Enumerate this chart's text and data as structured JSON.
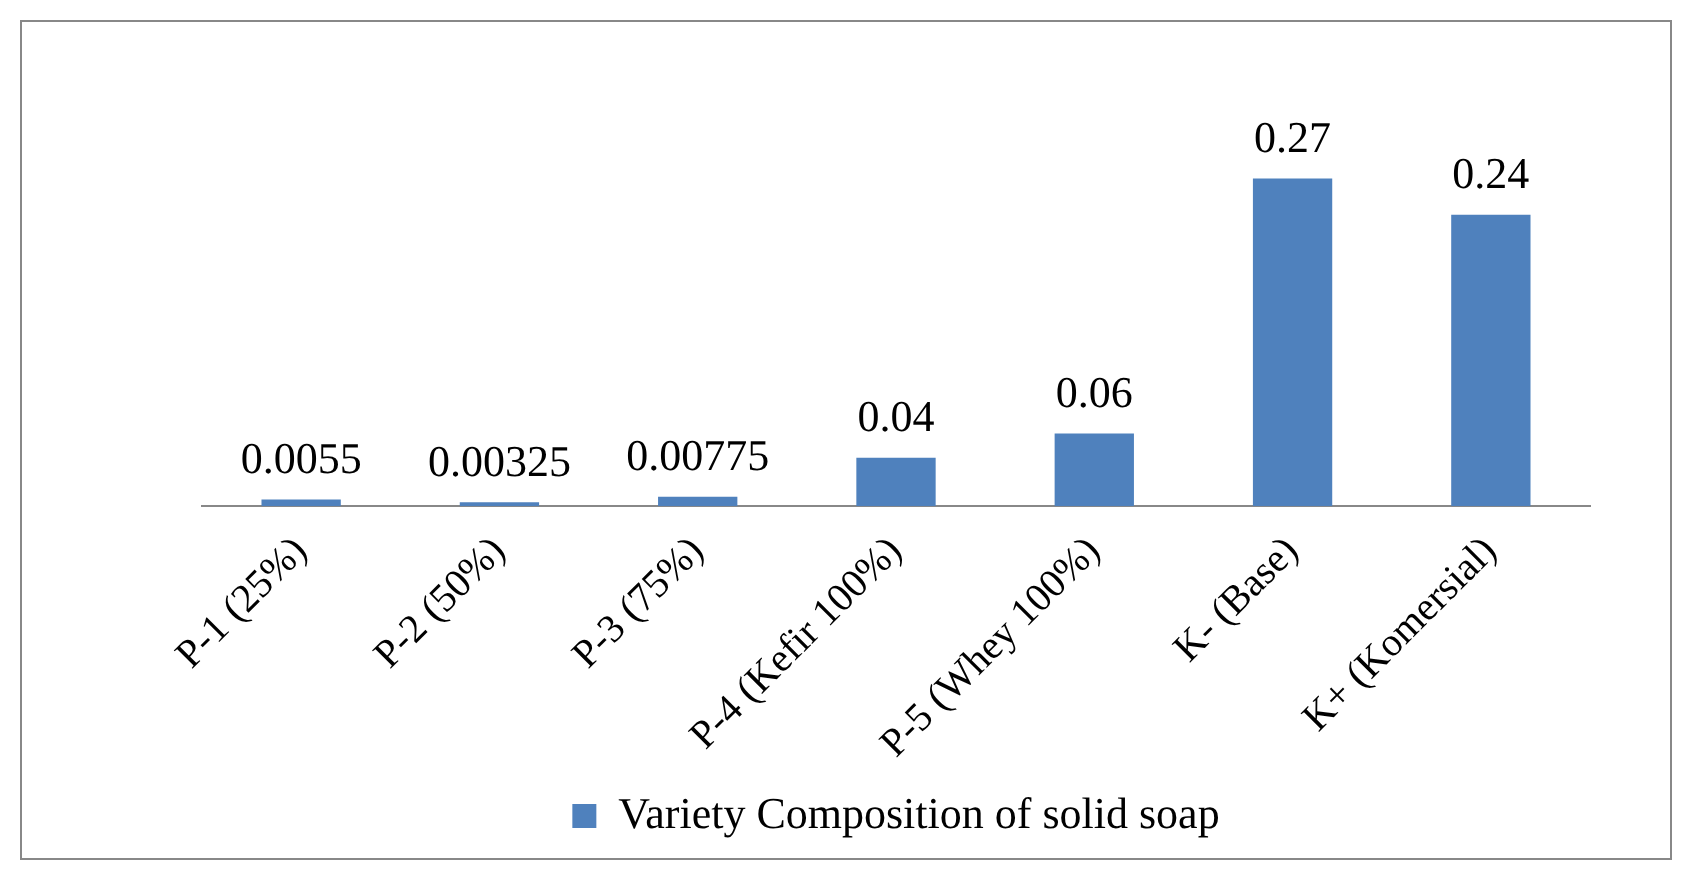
{
  "chart_data": {
    "type": "bar",
    "categories": [
      "P-1 (25%)",
      "P-2 (50%)",
      "P-3 (75%)",
      "P-4 (Kefir 100%)",
      "P-5 (Whey 100%)",
      "K- (Base)",
      "K+ (Komersial)"
    ],
    "series": [
      {
        "name": "Variety Composition of solid soap",
        "color": "#4f81bd",
        "values": [
          0.0055,
          0.00325,
          0.00775,
          0.04,
          0.06,
          0.27,
          0.24
        ]
      }
    ],
    "data_labels": true,
    "legend": "bottom",
    "grid": false,
    "tick_labels": "x"
  }
}
